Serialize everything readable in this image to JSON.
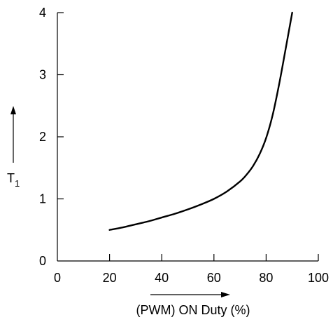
{
  "chart_data": {
    "type": "line",
    "title": "",
    "xlabel": "(PWM) ON Duty (%)",
    "ylabel": "T",
    "ylabel_subscript": "1",
    "xlim": [
      0,
      100
    ],
    "ylim": [
      0,
      4
    ],
    "xticks": [
      0,
      20,
      40,
      60,
      80,
      100
    ],
    "yticks": [
      0,
      1,
      2,
      3,
      4
    ],
    "grid": false,
    "legend": "none",
    "series": [
      {
        "color": "#000000",
        "x": [
          20,
          25,
          30,
          35,
          40,
          45,
          50,
          55,
          60,
          65,
          70,
          72.5,
          75,
          77.5,
          80,
          82.5,
          85,
          87.5,
          90
        ],
        "y": [
          0.5,
          0.54,
          0.59,
          0.64,
          0.7,
          0.76,
          0.83,
          0.91,
          1.0,
          1.12,
          1.28,
          1.39,
          1.53,
          1.72,
          1.98,
          2.35,
          2.85,
          3.42,
          4.0
        ]
      }
    ]
  }
}
